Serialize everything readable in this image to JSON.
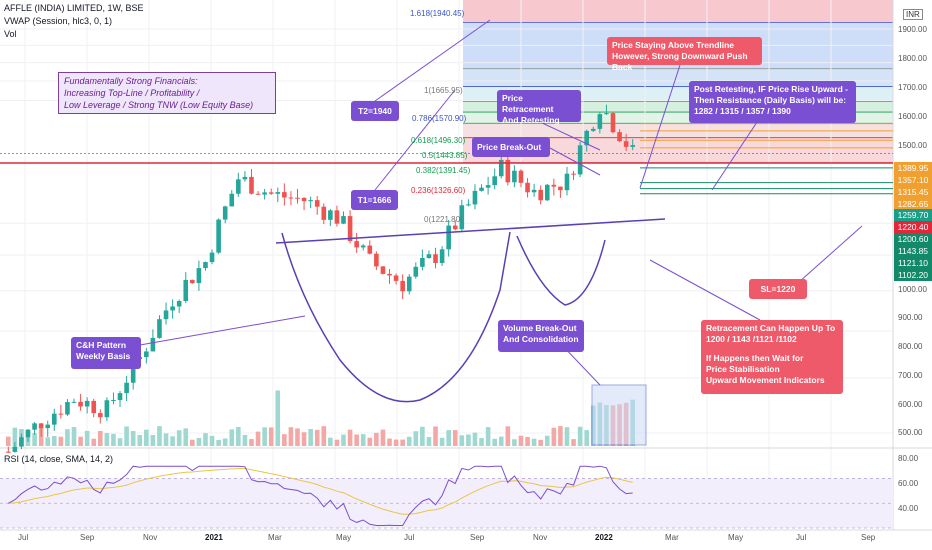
{
  "header": {
    "title": "AFFLE (INDIA) LIMITED, 1W, BSE",
    "vwap": "VWAP (Session, hlc3, 0, 1)",
    "vol": "Vol",
    "currency": "INR"
  },
  "rsi_label": "RSI (14, close, SMA, 14, 2)",
  "info_box": [
    "Fundamentally Strong Financials:",
    "Increasing Top-Line / Profitability /",
    "Low Leverage / Strong TNW (Low Equity Base)"
  ],
  "annotations": {
    "t2": "T2=1940",
    "t1": "T1=1666",
    "ch_pattern": [
      "C&H Pattern",
      "Weekly Basis"
    ],
    "retrace_retest": [
      "Price Retracement",
      "And Retesting"
    ],
    "breakout": "Price Break-Out",
    "vol_breakout": [
      "Volume Break-Out",
      "And Consolidation"
    ],
    "trendline": [
      "Price Staying Above Trendline",
      "However, Strong Downward Push Back"
    ],
    "post_retest": [
      "Post Retesting, IF Price Rise Upward -",
      "Then Resistance (Daily Basis) will be:",
      "1282 / 1315 / 1357 / 1390"
    ],
    "sl": "SL=1220",
    "retracement": [
      "Retracement Can Happen Up To",
      "1200 / 1143 /1121 /1102",
      "",
      "If Happens then Wait for",
      "Price Stabilisation",
      "Upward Movement Indicators"
    ]
  },
  "fib_labels": [
    "1.618(1940.45)",
    "1(1665.95)",
    "0.786(1570.90)",
    "0.618(1496.30)",
    "0.5(1443.85)",
    "0.382(1391.45)",
    "0.236(1326.60)",
    "0(1221.80)"
  ],
  "price_tags": [
    {
      "text": "1389.95",
      "color": "#f0a030"
    },
    {
      "text": "1357.10",
      "color": "#f0a030"
    },
    {
      "text": "1315.45",
      "color": "#f0a030"
    },
    {
      "text": "1282.65",
      "color": "#f0a030"
    },
    {
      "text": "1259.70",
      "color": "#1a9e88"
    },
    {
      "text": "1220.40",
      "color": "#e0283a"
    },
    {
      "text": "1200.60",
      "color": "#128a6a"
    },
    {
      "text": "1143.85",
      "color": "#128a6a"
    },
    {
      "text": "1121.10",
      "color": "#128a6a"
    },
    {
      "text": "1102.20",
      "color": "#128a6a"
    }
  ],
  "price_ticks": [
    "1900.00",
    "1800.00",
    "1700.00",
    "1600.00",
    "1500.00",
    "1000.00",
    "900.00",
    "800.00",
    "700.00",
    "600.00",
    "500.00"
  ],
  "rsi_ticks": [
    "80.00",
    "60.00",
    "40.00"
  ],
  "x_ticks": [
    {
      "label": "Jul",
      "bold": false
    },
    {
      "label": "Sep",
      "bold": false
    },
    {
      "label": "Nov",
      "bold": false
    },
    {
      "label": "2021",
      "bold": true
    },
    {
      "label": "Mar",
      "bold": false
    },
    {
      "label": "May",
      "bold": false
    },
    {
      "label": "Jul",
      "bold": false
    },
    {
      "label": "Sep",
      "bold": false
    },
    {
      "label": "Nov",
      "bold": false
    },
    {
      "label": "2022",
      "bold": true
    },
    {
      "label": "Mar",
      "bold": false
    },
    {
      "label": "May",
      "bold": false
    },
    {
      "label": "Jul",
      "bold": false
    },
    {
      "label": "Sep",
      "bold": false
    }
  ],
  "chart_data": {
    "type": "candlestick",
    "title": "AFFLE (INDIA) LIMITED, 1W, BSE",
    "y_scale": "log",
    "weekly_close_approx": [
      {
        "date": "2020-07",
        "close": 470
      },
      {
        "date": "2020-08",
        "close": 520
      },
      {
        "date": "2020-09",
        "close": 560
      },
      {
        "date": "2020-10",
        "close": 540
      },
      {
        "date": "2020-11",
        "close": 640
      },
      {
        "date": "2020-12",
        "close": 780
      },
      {
        "date": "2021-01",
        "close": 880
      },
      {
        "date": "2021-02",
        "close": 1160
      },
      {
        "date": "2021-03",
        "close": 1100
      },
      {
        "date": "2021-04",
        "close": 1080
      },
      {
        "date": "2021-05",
        "close": 1020
      },
      {
        "date": "2021-06",
        "close": 880
      },
      {
        "date": "2021-07",
        "close": 820
      },
      {
        "date": "2021-08",
        "close": 900
      },
      {
        "date": "2021-09",
        "close": 1060
      },
      {
        "date": "2021-10",
        "close": 1200
      },
      {
        "date": "2021-11",
        "close": 1110
      },
      {
        "date": "2021-12",
        "close": 1150
      },
      {
        "date": "2022-01",
        "close": 1480
      },
      {
        "date": "2022-02",
        "close": 1260
      }
    ],
    "fibonacci_levels": [
      {
        "ratio": 1.618,
        "price": 1940.45
      },
      {
        "ratio": 1,
        "price": 1665.95
      },
      {
        "ratio": 0.786,
        "price": 1570.9
      },
      {
        "ratio": 0.618,
        "price": 1496.3
      },
      {
        "ratio": 0.5,
        "price": 1443.85
      },
      {
        "ratio": 0.382,
        "price": 1391.45
      },
      {
        "ratio": 0.236,
        "price": 1326.6
      },
      {
        "ratio": 0,
        "price": 1221.8
      }
    ],
    "resistance_levels": [
      1389.95,
      1357.1,
      1315.45,
      1282.65
    ],
    "support_levels": [
      1200.6,
      1143.85,
      1121.1,
      1102.2
    ],
    "current_price": 1259.7,
    "stop_loss": 1220.4,
    "rsi_ylim": [
      30,
      85
    ],
    "rsi_levels": [
      70,
      50,
      30
    ]
  }
}
